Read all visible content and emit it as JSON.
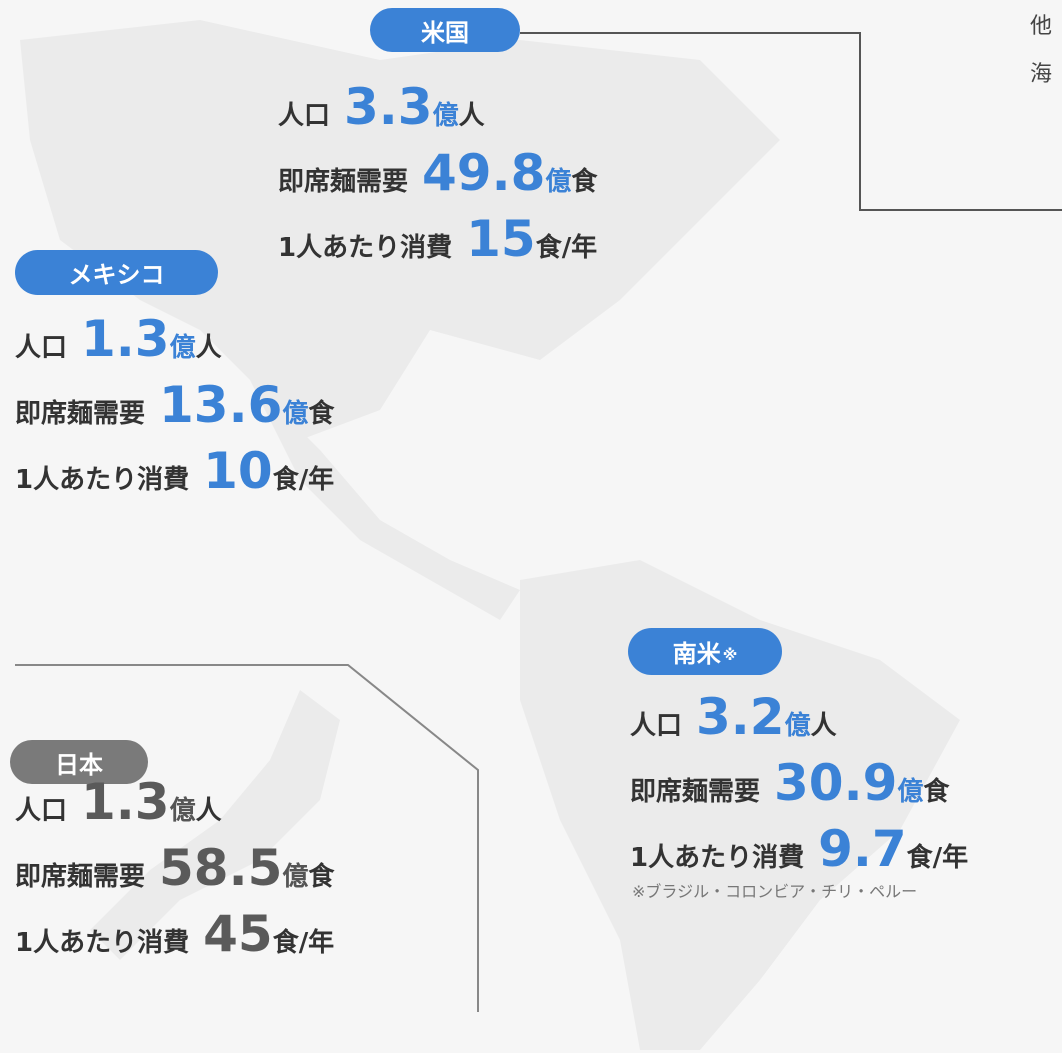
{
  "regions": [
    {
      "name": "米国",
      "stats": [
        {
          "label": "人口",
          "value": 3.3,
          "unit_accent": "億",
          "unit": "人"
        },
        {
          "label": "即席麺需要",
          "value": 49.8,
          "unit_accent": "億",
          "unit": "食"
        },
        {
          "label": "1人あたり消費",
          "value": 15,
          "unit": "食/年"
        }
      ]
    },
    {
      "name": "メキシコ",
      "stats": [
        {
          "label": "人口",
          "value": 1.3,
          "unit_accent": "億",
          "unit": "人"
        },
        {
          "label": "即席麺需要",
          "value": 13.6,
          "unit_accent": "億",
          "unit": "食"
        },
        {
          "label": "1人あたり消費",
          "value": 10,
          "unit": "食/年"
        }
      ]
    },
    {
      "name": "南米",
      "note": "※",
      "stats": [
        {
          "label": "人口",
          "value": 3.2,
          "unit_accent": "億",
          "unit": "人"
        },
        {
          "label": "即席麺需要",
          "value": 30.9,
          "unit_accent": "億",
          "unit": "食"
        },
        {
          "label": "1人あたり消費",
          "value": 9.7,
          "unit": "食/年"
        }
      ],
      "footnote": "※ブラジル・コロンビア・チリ・ペルー"
    },
    {
      "name": "日本",
      "stats": [
        {
          "label": "人口",
          "value": 1.3,
          "unit_accent": "億",
          "unit": "人"
        },
        {
          "label": "即席麺需要",
          "value": 58.5,
          "unit_accent": "億",
          "unit": "食"
        },
        {
          "label": "1人あたり消費",
          "value": 45,
          "unit": "食/年"
        }
      ]
    }
  ],
  "side_text": [
    "他",
    "海"
  ]
}
